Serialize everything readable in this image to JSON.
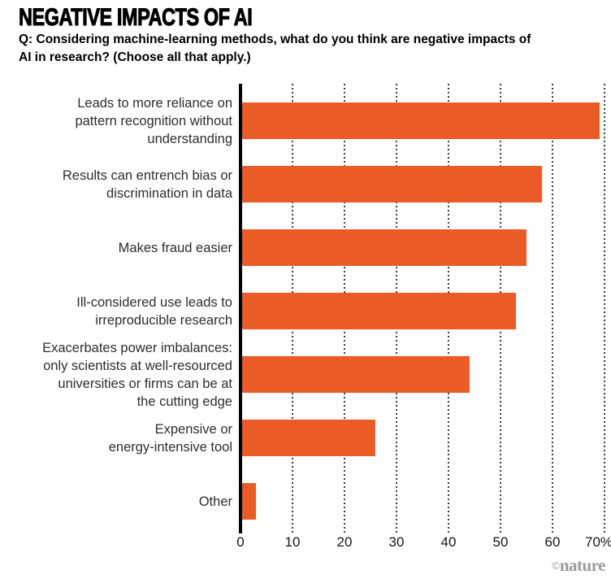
{
  "header": {
    "title": "NEGATIVE IMPACTS OF AI",
    "subtitle_lines": [
      "Q: Considering machine-learning methods, what do you think are negative impacts of",
      "AI in research? (Choose all that apply.)"
    ]
  },
  "chart_data": {
    "type": "bar",
    "orientation": "horizontal",
    "title": "NEGATIVE IMPACTS OF AI",
    "question": "Q: Considering machine-learning methods, what do you think are negative impacts of AI in research? (Choose all that apply.)",
    "unit": "%",
    "xlim": [
      0,
      70
    ],
    "grid": "dotted-vertical",
    "legend": "none",
    "bar_color": "#ea5b26",
    "categories": [
      {
        "label": "Leads to more reliance on pattern recognition without understanding",
        "lines": [
          "Leads to more reliance on",
          "pattern recognition without",
          "understanding"
        ]
      },
      {
        "label": "Results can entrench bias or discrimination in data",
        "lines": [
          "Results can entrench bias or",
          "discrimination in data"
        ]
      },
      {
        "label": "Makes fraud easier",
        "lines": [
          "Makes fraud easier"
        ]
      },
      {
        "label": "Ill-considered use leads to irreproducible research",
        "lines": [
          "Ill-considered use leads to",
          "irreproducible research"
        ]
      },
      {
        "label": "Exacerbates power imbalances: only scientists at well-resourced universities or firms can be at the cutting edge",
        "lines": [
          "Exacerbates power imbalances:",
          "only scientists at well-resourced",
          "universities or firms can be at",
          "the cutting edge"
        ]
      },
      {
        "label": "Expensive or energy-intensive tool",
        "lines": [
          "Expensive or",
          "energy-intensive tool"
        ]
      },
      {
        "label": "Other",
        "lines": [
          "Other"
        ]
      }
    ],
    "values": [
      69,
      58,
      55,
      53,
      44,
      26,
      3
    ],
    "xticks": [
      {
        "value": 0,
        "label": "0"
      },
      {
        "value": 10,
        "label": "10"
      },
      {
        "value": 20,
        "label": "20"
      },
      {
        "value": 30,
        "label": "30"
      },
      {
        "value": 40,
        "label": "40"
      },
      {
        "value": 50,
        "label": "50"
      },
      {
        "value": 60,
        "label": "60"
      },
      {
        "value": 70,
        "label": "70%"
      }
    ]
  },
  "footer": {
    "credit_symbol": "©",
    "credit_name": "nature"
  }
}
